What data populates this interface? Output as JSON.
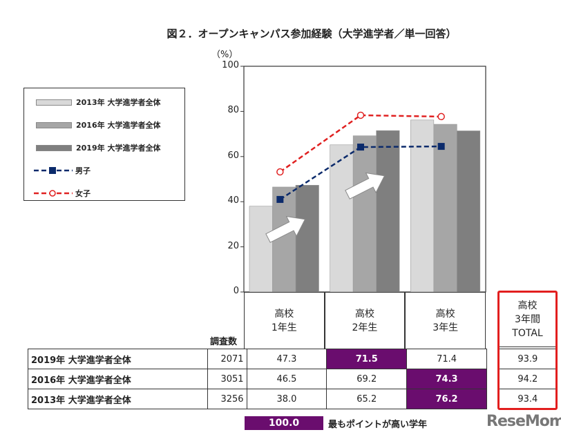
{
  "chart_data": {
    "type": "bar",
    "title": "図２．オープンキャンパス参加経験（大学進学者／単一回答）",
    "ylabel": "（%）",
    "ylim": [
      0,
      100
    ],
    "yticks": [
      0,
      20,
      40,
      60,
      80,
      100
    ],
    "categories": [
      "高校1年生",
      "高校2年生",
      "高校3年生"
    ],
    "legend_placement": "left",
    "series": [
      {
        "name": "2013年 大学進学者全体",
        "type": "bar",
        "color": "#d9d9d9",
        "values": [
          38.0,
          65.2,
          76.2
        ]
      },
      {
        "name": "2016年 大学進学者全体",
        "type": "bar",
        "color": "#a6a6a6",
        "values": [
          46.5,
          69.2,
          74.3
        ]
      },
      {
        "name": "2019年 大学進学者全体",
        "type": "bar",
        "color": "#7f7f7f",
        "values": [
          47.3,
          71.5,
          71.4
        ]
      },
      {
        "name": "男子",
        "type": "line",
        "color": "#0b2a6b",
        "values": [
          41.0,
          64.2,
          64.5
        ]
      },
      {
        "name": "女子",
        "type": "line",
        "color": "#e02020",
        "values": [
          53.2,
          78.3,
          77.7
        ]
      }
    ]
  },
  "table": {
    "count_header": "調査数",
    "col_headers": [
      [
        "高校",
        "1年生"
      ],
      [
        "高校",
        "2年生"
      ],
      [
        "高校",
        "3年生"
      ],
      [
        "高校",
        "3年間",
        "TOTAL"
      ]
    ],
    "rows": [
      {
        "label": "2019年 大学進学者全体",
        "count": "2071",
        "values": [
          "47.3",
          "71.5",
          "71.4",
          "93.9"
        ],
        "highlight": 1
      },
      {
        "label": "2016年 大学進学者全体",
        "count": "3051",
        "values": [
          "46.5",
          "69.2",
          "74.3",
          "94.2"
        ],
        "highlight": 2
      },
      {
        "label": "2013年 大学進学者全体",
        "count": "3256",
        "values": [
          "38.0",
          "65.2",
          "76.2",
          "93.4"
        ],
        "highlight": 2
      }
    ],
    "highlight_color": "#6a0d6e",
    "key_value": "100.0",
    "key_label": "最もポイントが高い学年"
  },
  "watermark": "ReseMom"
}
